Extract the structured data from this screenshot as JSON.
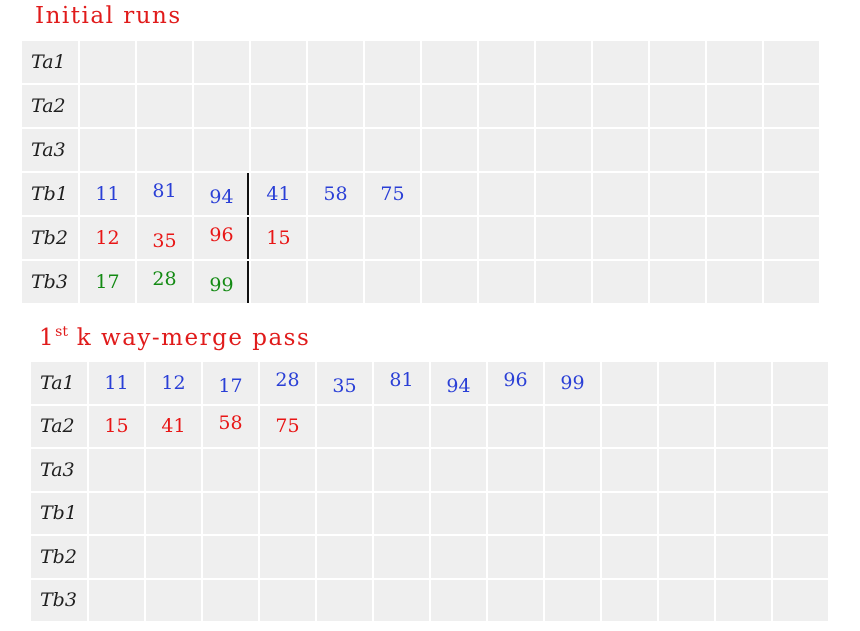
{
  "colors": {
    "title": "#e01b1b",
    "blue": "#2a3fd6",
    "red": "#e81616",
    "green": "#138a13",
    "cell": "#efefef"
  },
  "initial": {
    "title": "Initial runs",
    "rows": [
      {
        "label": "Ta1",
        "cells": []
      },
      {
        "label": "Ta2",
        "cells": []
      },
      {
        "label": "Ta3",
        "cells": []
      },
      {
        "label": "Tb1",
        "color": "blue",
        "cells": [
          "11",
          "81",
          "94",
          "41",
          "58",
          "75"
        ]
      },
      {
        "label": "Tb2",
        "color": "red",
        "cells": [
          "12",
          "35",
          "96",
          "15"
        ]
      },
      {
        "label": "Tb3",
        "color": "green",
        "cells": [
          "17",
          "28",
          "99"
        ]
      }
    ]
  },
  "pass1": {
    "title_main": "1",
    "title_sup": "st",
    "title_rest": " k way-merge pass",
    "rows": [
      {
        "label": "Ta1",
        "color": "blue",
        "cells": [
          "11",
          "12",
          "17",
          "28",
          "35",
          "81",
          "94",
          "96",
          "99"
        ]
      },
      {
        "label": "Ta2",
        "color": "red",
        "cells": [
          "15",
          "41",
          "58",
          "75"
        ]
      },
      {
        "label": "Ta3",
        "cells": []
      },
      {
        "label": "Tb1",
        "cells": []
      },
      {
        "label": "Tb2",
        "cells": []
      },
      {
        "label": "Tb3",
        "cells": []
      }
    ]
  }
}
